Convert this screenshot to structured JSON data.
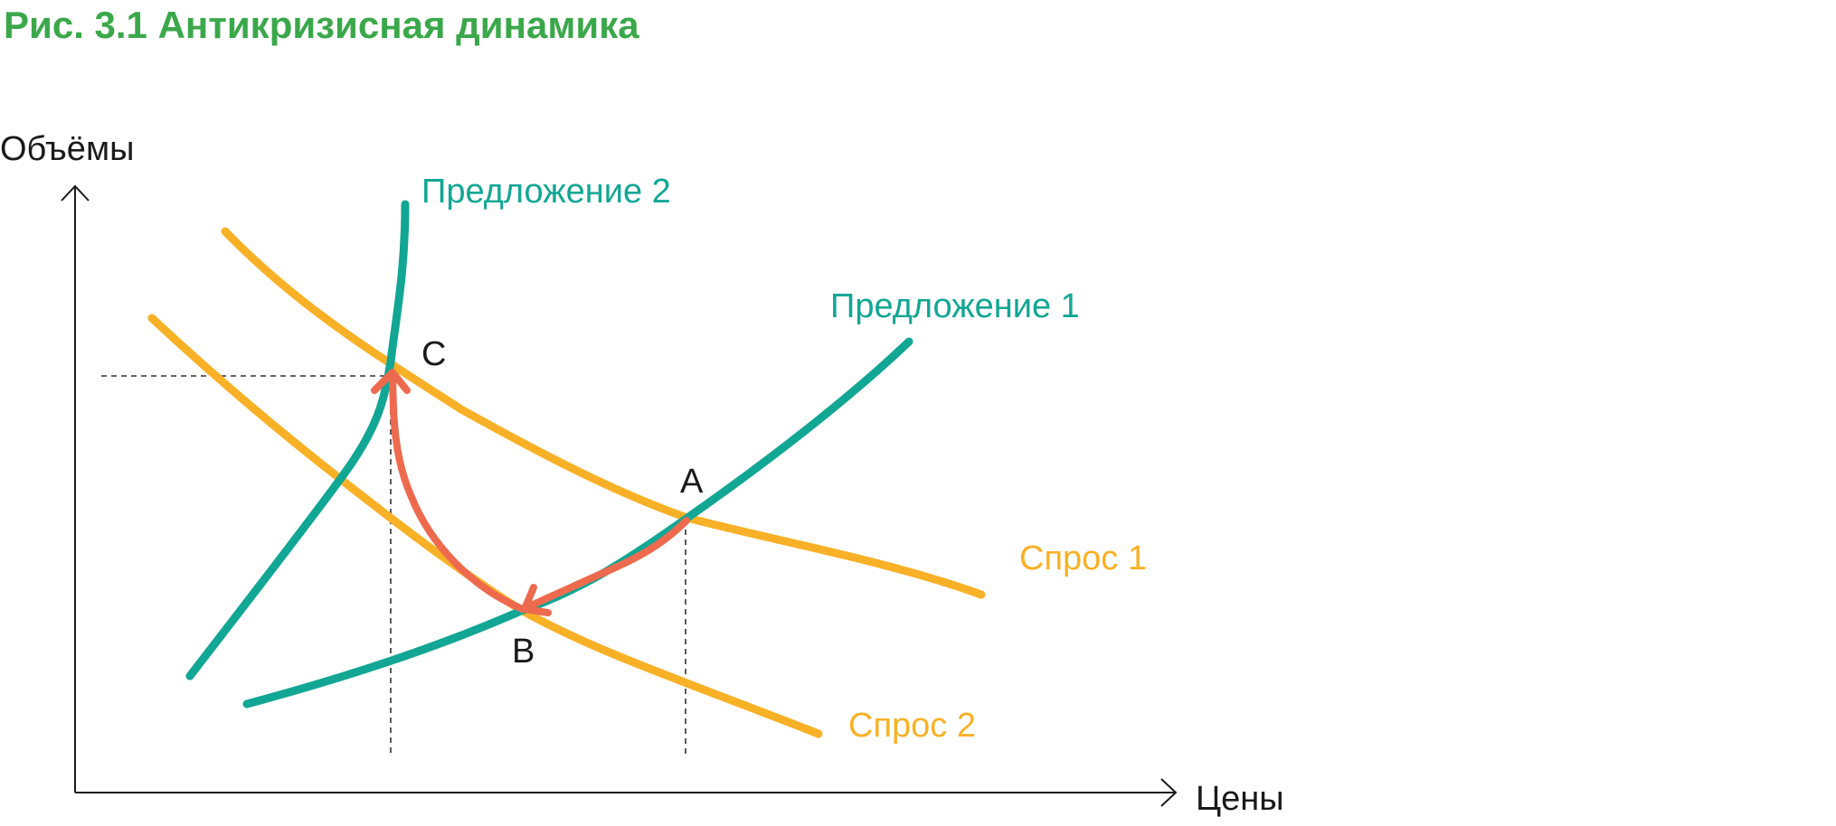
{
  "figure_title": "Рис. 3.1 Антикризисная динамика",
  "axes": {
    "y_label": "Объёмы",
    "x_label": "Цены"
  },
  "curves": {
    "supply_1": {
      "label": "Предложение 1",
      "color": "#12a694"
    },
    "supply_2": {
      "label": "Предложение 2",
      "color": "#12a694"
    },
    "demand_1": {
      "label": "Спрос 1",
      "color": "#f8b126"
    },
    "demand_2": {
      "label": "Спрос 2",
      "color": "#f8b126"
    }
  },
  "points": {
    "A": "A",
    "B": "B",
    "C": "C"
  },
  "colors": {
    "title": "#3aa84a",
    "arrow": "#ee6a4e",
    "axis": "#1a1a1a",
    "guide": "#333333"
  }
}
